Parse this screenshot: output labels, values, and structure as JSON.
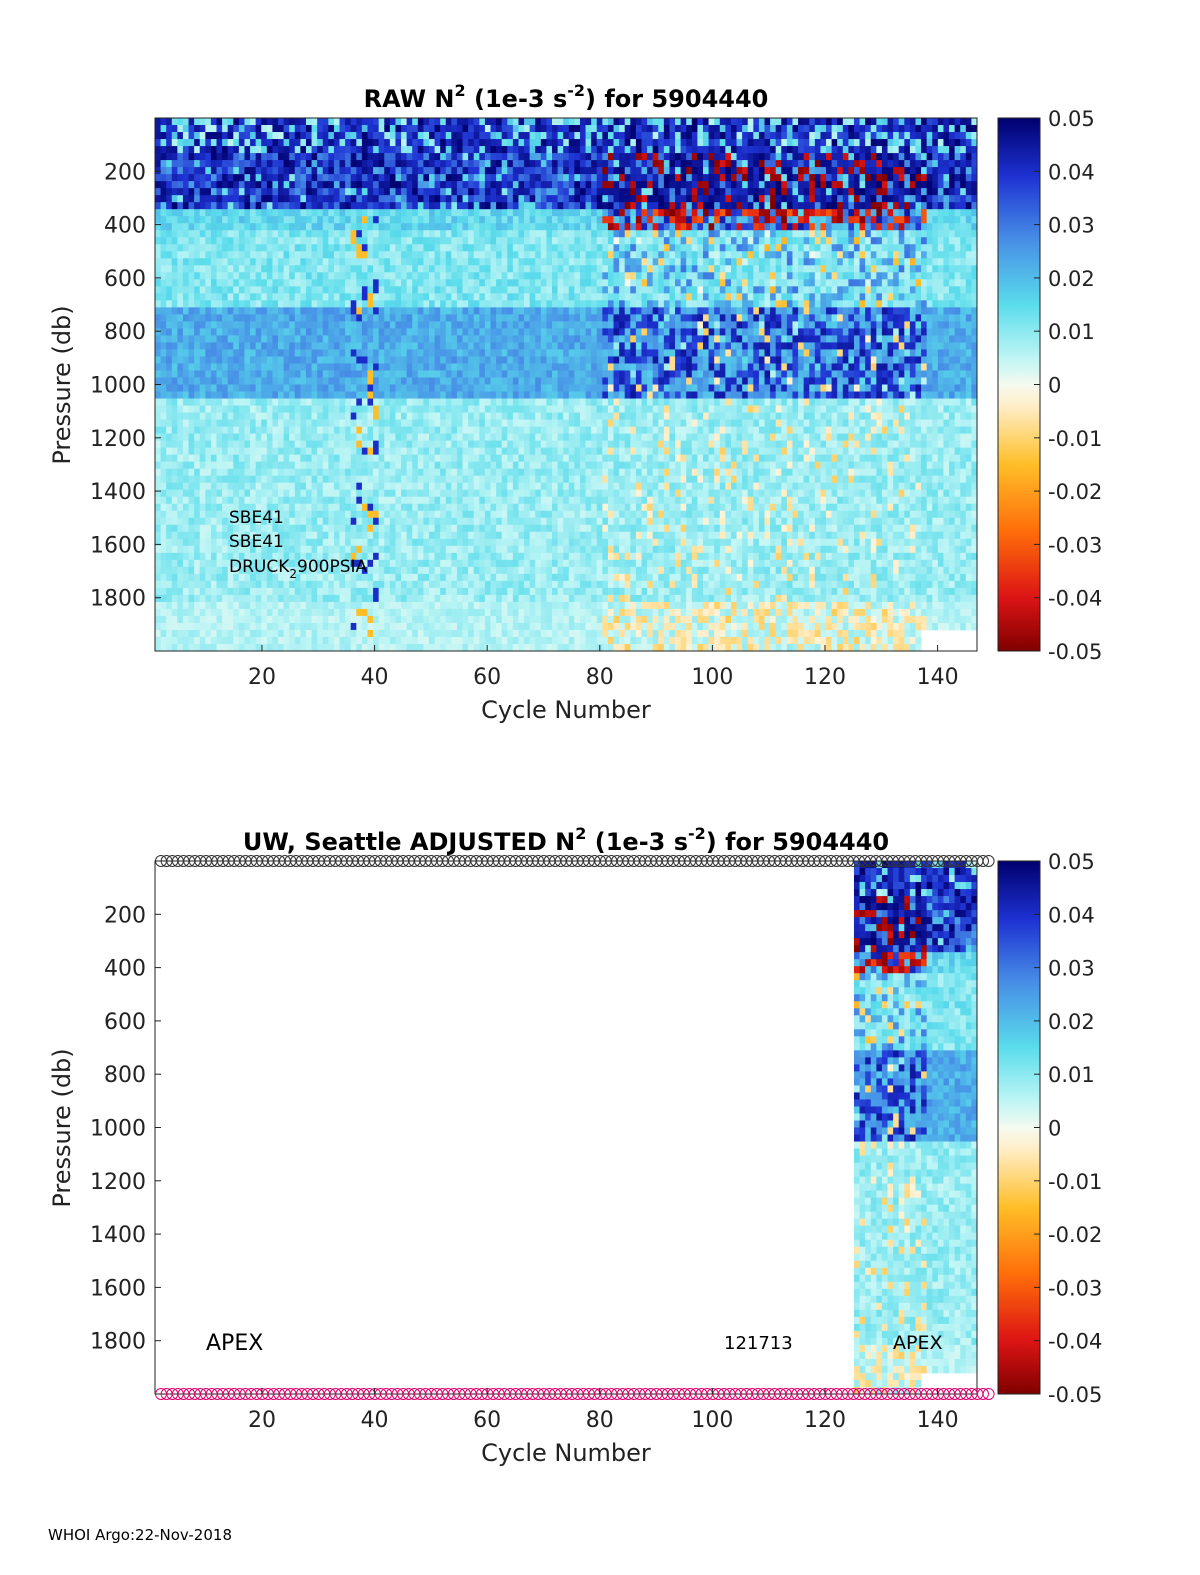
{
  "footer": "WHOI Argo:22-Nov-2018",
  "chart_data": [
    {
      "type": "heatmap",
      "title_parts": [
        "RAW N",
        "2",
        " (1e-3 s",
        "-2",
        ") for 5904440"
      ],
      "xlabel": "Cycle Number",
      "ylabel": "Pressure (db)",
      "xlim": [
        1,
        147
      ],
      "ylim": [
        2000,
        0
      ],
      "xticks": [
        "20",
        "40",
        "60",
        "80",
        "100",
        "120",
        "140"
      ],
      "yticks": [
        "200",
        "400",
        "600",
        "800",
        "1000",
        "1200",
        "1400",
        "1600",
        "1800"
      ],
      "colorbar": {
        "range": [
          -0.05,
          0.05
        ],
        "ticks": [
          "0.05",
          "0.04",
          "0.03",
          "0.02",
          "0.01",
          "0",
          "-0.01",
          "-0.02",
          "-0.03",
          "-0.04",
          "-0.05"
        ]
      },
      "annotations": [
        "SBE41",
        "SBE41",
        "DRUCK",
        "2",
        "900PSIA"
      ],
      "data_cycles": [
        1,
        147
      ],
      "noisy_cycles": [
        81,
        138
      ],
      "max_depth_after_cycle_137": 1900
    },
    {
      "type": "heatmap",
      "title_parts": [
        "UW, Seattle  ADJUSTED N",
        "2",
        " (1e-3 s",
        "-2",
        ") for 5904440"
      ],
      "xlabel": "Cycle Number",
      "ylabel": "Pressure (db)",
      "xlim": [
        1,
        147
      ],
      "ylim": [
        2000,
        0
      ],
      "xticks": [
        "20",
        "40",
        "60",
        "80",
        "100",
        "120",
        "140"
      ],
      "yticks": [
        "200",
        "400",
        "600",
        "800",
        "1000",
        "1200",
        "1400",
        "1600",
        "1800"
      ],
      "colorbar": {
        "range": [
          -0.05,
          0.05
        ],
        "ticks": [
          "0.05",
          "0.04",
          "0.03",
          "0.02",
          "0.01",
          "0",
          "-0.01",
          "-0.02",
          "-0.03",
          "-0.04",
          "-0.05"
        ]
      },
      "annotations": [
        "APEX",
        "121713",
        "APEX"
      ],
      "data_cycles": [
        126,
        147
      ],
      "qc_marker_top_color": "#333333",
      "qc_marker_bottom_color": "#e0006e"
    }
  ]
}
